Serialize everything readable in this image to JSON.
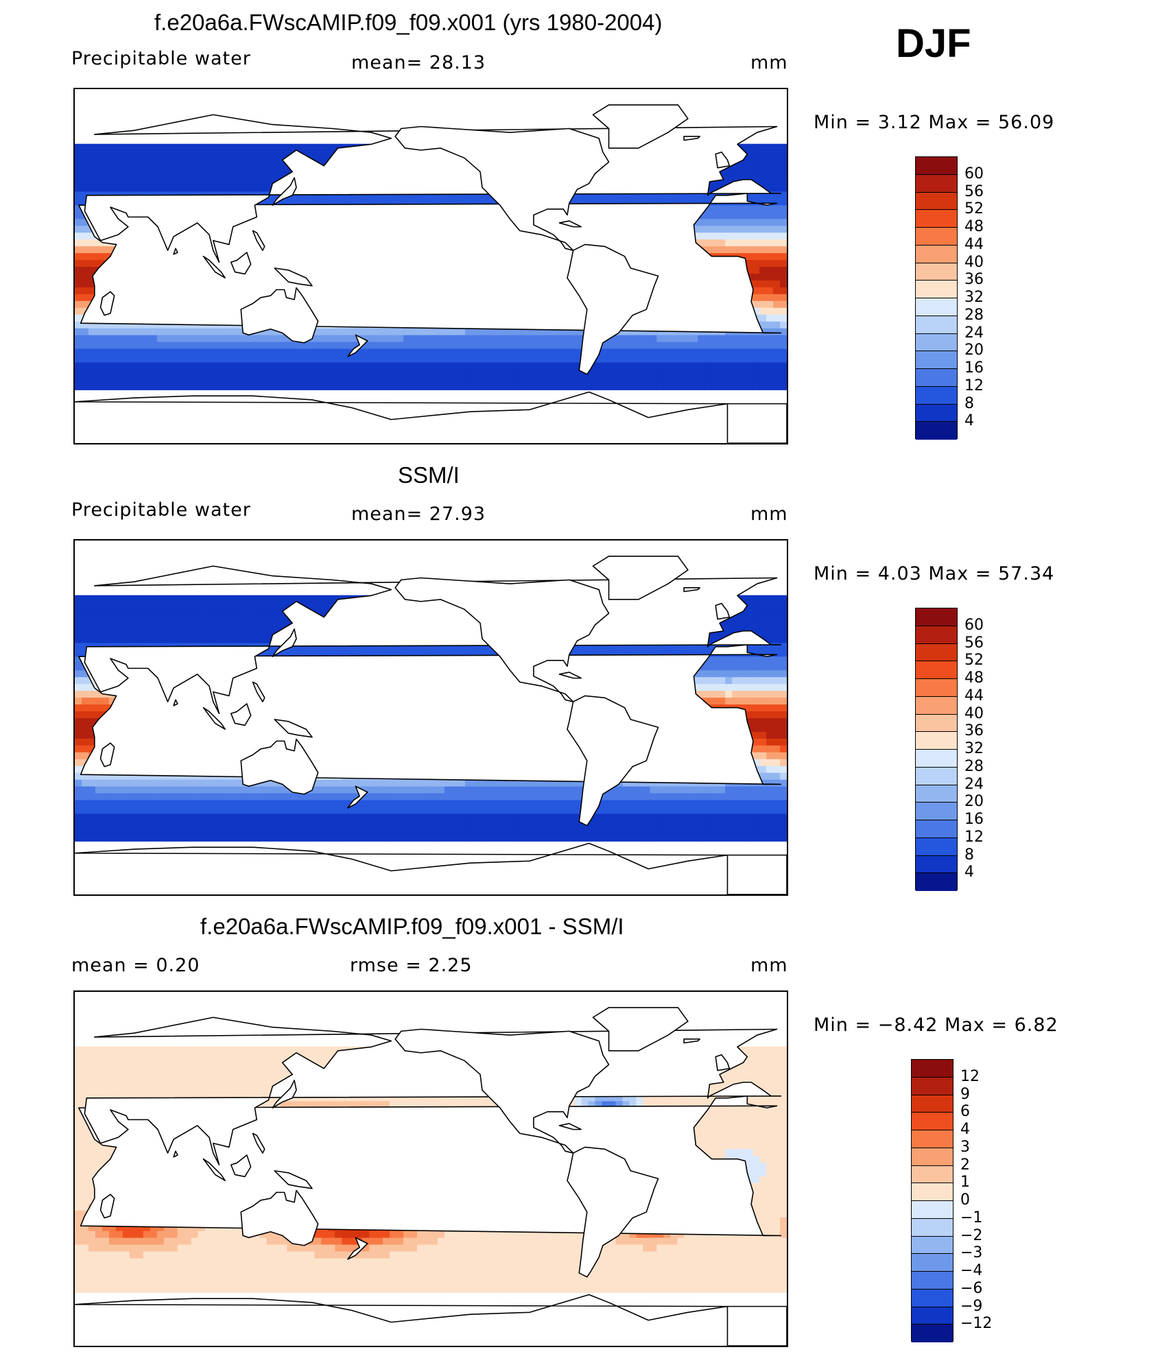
{
  "season_label": "DJF",
  "panels": [
    {
      "title": "f.e20a6a.FWscAMIP.f09_f09.x001 (yrs 1980-2004)",
      "variable": "Precipitable  water",
      "stat_text": "mean=   28.13",
      "units": "mm",
      "min_max": "Min  =     3.12  Max  =     56.09",
      "field": "model",
      "colorbar": {
        "labels": [
          "60",
          "56",
          "52",
          "48",
          "44",
          "40",
          "36",
          "32",
          "28",
          "24",
          "20",
          "16",
          "12",
          "8",
          "4"
        ],
        "colors": [
          "#8c0d0d",
          "#b3200f",
          "#d6360f",
          "#ef4f1e",
          "#f77a45",
          "#f9a172",
          "#fbc4a0",
          "#fde3cc",
          "#d9e9fb",
          "#b9d2f7",
          "#93b6f1",
          "#6e98ea",
          "#4a79e5",
          "#2456de",
          "#0f36c4",
          "#06168c"
        ]
      }
    },
    {
      "title": "SSM/I",
      "variable": "Precipitable  water",
      "stat_text": "mean=   27.93",
      "units": "mm",
      "min_max": "Min  =     4.03  Max  =     57.34",
      "field": "obs",
      "colorbar": {
        "labels": [
          "60",
          "56",
          "52",
          "48",
          "44",
          "40",
          "36",
          "32",
          "28",
          "24",
          "20",
          "16",
          "12",
          "8",
          "4"
        ],
        "colors": [
          "#8c0d0d",
          "#b3200f",
          "#d6360f",
          "#ef4f1e",
          "#f77a45",
          "#f9a172",
          "#fbc4a0",
          "#fde3cc",
          "#d9e9fb",
          "#b9d2f7",
          "#93b6f1",
          "#6e98ea",
          "#4a79e5",
          "#2456de",
          "#0f36c4",
          "#06168c"
        ]
      }
    },
    {
      "title": "f.e20a6a.FWscAMIP.f09_f09.x001 - SSM/I",
      "stat_left": "mean  =     0.20",
      "stat_mid": "rmse  =     2.25",
      "units": "mm",
      "min_max": "Min  =   −8.42  Max  =       6.82",
      "field": "diff",
      "colorbar": {
        "labels": [
          "12",
          "9",
          "6",
          "4",
          "3",
          "2",
          "1",
          "0",
          "−1",
          "−2",
          "−3",
          "−4",
          "−6",
          "−9",
          "−12"
        ],
        "colors": [
          "#8c0d0d",
          "#b3200f",
          "#d6360f",
          "#ef4f1e",
          "#f77a45",
          "#f9a172",
          "#fbc4a0",
          "#fde3cc",
          "#d9e9fb",
          "#b9d2f7",
          "#93b6f1",
          "#6e98ea",
          "#4a79e5",
          "#2456de",
          "#0f36c4",
          "#06168c"
        ]
      }
    }
  ]
}
